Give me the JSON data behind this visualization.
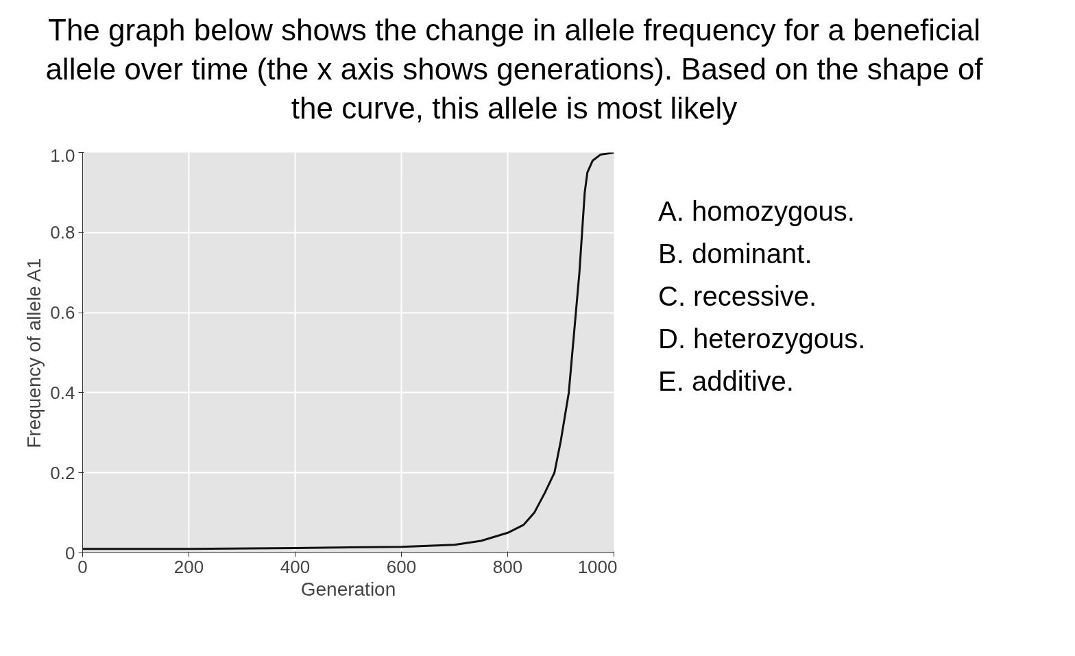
{
  "chart_data": {
    "type": "line",
    "title": "The graph below shows the change in allele frequency for a beneficial allele over time (the x axis shows generations). Based on the shape of the curve, this allele is most likely",
    "xlabel": "Generation",
    "ylabel": "Frequency of allele A1",
    "x": [
      0,
      200,
      400,
      600,
      700,
      750,
      800,
      830,
      850,
      870,
      888,
      900,
      915,
      925,
      935,
      940,
      945,
      950,
      960,
      975,
      1000
    ],
    "series": [
      {
        "color": "#111111",
        "values": [
          0.01,
          0.01,
          0.012,
          0.015,
          0.02,
          0.03,
          0.05,
          0.07,
          0.1,
          0.15,
          0.2,
          0.28,
          0.4,
          0.55,
          0.7,
          0.8,
          0.9,
          0.95,
          0.98,
          0.995,
          1.0
        ]
      }
    ],
    "xlim": [
      0,
      1000
    ],
    "ylim": [
      0,
      1.0
    ],
    "xticks": [
      0,
      200,
      400,
      600,
      800,
      1000
    ],
    "yticks": [
      0,
      0.2,
      0.4,
      0.6,
      0.8,
      {
        "value": 1.0,
        "label": "1.0"
      }
    ],
    "grid": true,
    "marker": "none",
    "line_style": "solid",
    "annotations": [
      "A. homozygous.",
      "B. dominant.",
      "C. recessive.",
      "D. heterozygous.",
      "E. additive."
    ]
  }
}
